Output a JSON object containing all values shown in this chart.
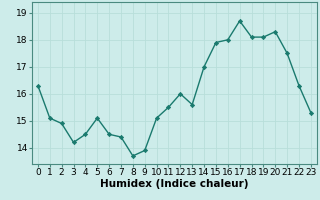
{
  "x": [
    0,
    1,
    2,
    3,
    4,
    5,
    6,
    7,
    8,
    9,
    10,
    11,
    12,
    13,
    14,
    15,
    16,
    17,
    18,
    19,
    20,
    21,
    22,
    23
  ],
  "y": [
    16.3,
    15.1,
    14.9,
    14.2,
    14.5,
    15.1,
    14.5,
    14.4,
    13.7,
    13.9,
    15.1,
    15.5,
    16.0,
    15.6,
    17.0,
    17.9,
    18.0,
    18.7,
    18.1,
    18.1,
    18.3,
    17.5,
    16.3,
    15.3
  ],
  "line_color": "#1a7a6e",
  "marker": "D",
  "marker_size": 2.2,
  "bg_color": "#cdecea",
  "grid_color": "#b8deda",
  "xlabel": "Humidex (Indice chaleur)",
  "xlabel_fontsize": 7.5,
  "yticks": [
    14,
    15,
    16,
    17,
    18,
    19
  ],
  "xticks": [
    0,
    1,
    2,
    3,
    4,
    5,
    6,
    7,
    8,
    9,
    10,
    11,
    12,
    13,
    14,
    15,
    16,
    17,
    18,
    19,
    20,
    21,
    22,
    23
  ],
  "xlim": [
    -0.5,
    23.5
  ],
  "ylim": [
    13.4,
    19.4
  ],
  "tick_fontsize": 6.5,
  "line_width": 1.0,
  "spine_color": "#4a8a80"
}
